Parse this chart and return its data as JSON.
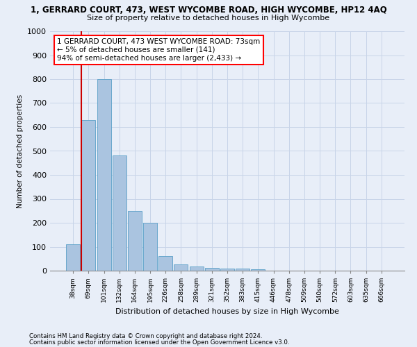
{
  "title": "1, GERRARD COURT, 473, WEST WYCOMBE ROAD, HIGH WYCOMBE, HP12 4AQ",
  "subtitle": "Size of property relative to detached houses in High Wycombe",
  "xlabel": "Distribution of detached houses by size in High Wycombe",
  "ylabel": "Number of detached properties",
  "footnote1": "Contains HM Land Registry data © Crown copyright and database right 2024.",
  "footnote2": "Contains public sector information licensed under the Open Government Licence v3.0.",
  "categories": [
    "38sqm",
    "69sqm",
    "101sqm",
    "132sqm",
    "164sqm",
    "195sqm",
    "226sqm",
    "258sqm",
    "289sqm",
    "321sqm",
    "352sqm",
    "383sqm",
    "415sqm",
    "446sqm",
    "478sqm",
    "509sqm",
    "540sqm",
    "572sqm",
    "603sqm",
    "635sqm",
    "666sqm"
  ],
  "values": [
    110,
    630,
    800,
    480,
    250,
    200,
    60,
    25,
    18,
    12,
    10,
    8,
    7,
    0,
    0,
    0,
    0,
    0,
    0,
    0,
    0
  ],
  "bar_color": "#aac4e0",
  "bar_edge_color": "#5a9fc8",
  "highlight_color": "#cc0000",
  "vline_x_index": 1,
  "ylim": [
    0,
    1000
  ],
  "yticks": [
    0,
    100,
    200,
    300,
    400,
    500,
    600,
    700,
    800,
    900,
    1000
  ],
  "annotation_text": "1 GERRARD COURT, 473 WEST WYCOMBE ROAD: 73sqm\n← 5% of detached houses are smaller (141)\n94% of semi-detached houses are larger (2,433) →",
  "grid_color": "#c8d4e8",
  "background_color": "#e8eef8",
  "plot_bg_color": "#e8eef8"
}
